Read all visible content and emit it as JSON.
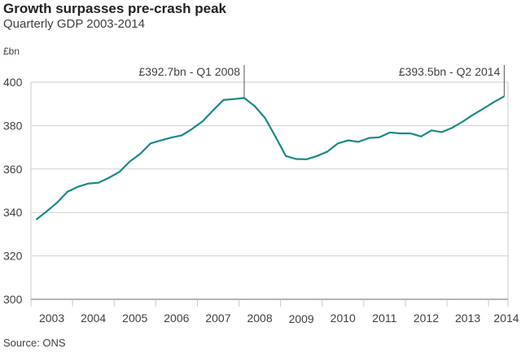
{
  "chart_data": {
    "type": "line",
    "title": "Growth surpasses pre-crash peak",
    "subtitle": "Quarterly GDP 2003-2014",
    "ylabel": "£bn",
    "xlabel": "",
    "source": "Source: ONS",
    "ylim": [
      300,
      400
    ],
    "yticks": [
      300,
      320,
      340,
      360,
      380,
      400
    ],
    "xticks": [
      "2003",
      "2004",
      "2005",
      "2006",
      "2007",
      "2008",
      "2009",
      "2010",
      "2011",
      "2012",
      "2013",
      "2014"
    ],
    "grid": true,
    "line_color": "#1a8a85",
    "series": [
      {
        "name": "GDP",
        "start": "2003 Q1",
        "end": "2014 Q2",
        "values": [
          336.7,
          340.5,
          344.5,
          349.5,
          351.8,
          353.3,
          353.7,
          356.0,
          358.7,
          363.5,
          367.0,
          371.8,
          373.2,
          374.5,
          375.5,
          378.5,
          382.0,
          387.0,
          391.8,
          392.2,
          392.7,
          389.0,
          383.5,
          375.0,
          366.0,
          364.6,
          364.5,
          366.0,
          368.0,
          371.8,
          373.2,
          372.5,
          374.3,
          374.6,
          376.8,
          376.4,
          376.4,
          375.0,
          377.8,
          377.0,
          379.0,
          381.8,
          385.0,
          387.8,
          390.8,
          393.5
        ]
      }
    ],
    "annotations": [
      {
        "text": "£392.7bn - Q1 2008",
        "quarter_index": 20,
        "value": 392.7
      },
      {
        "text": "£393.5bn - Q2 2014",
        "quarter_index": 45,
        "value": 393.5
      }
    ]
  }
}
